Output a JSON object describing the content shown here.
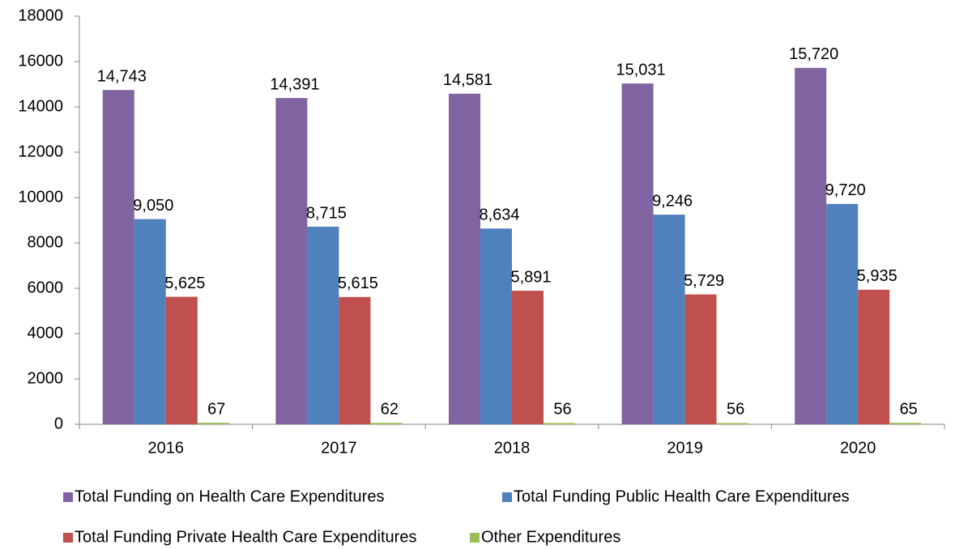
{
  "chart_data": {
    "type": "bar",
    "categories": [
      "2016",
      "2017",
      "2018",
      "2019",
      "2020"
    ],
    "series": [
      {
        "name": "Total Funding on Health Care Expenditures",
        "color": "#8064a2",
        "values": [
          14743,
          14391,
          14581,
          15031,
          15720
        ],
        "value_labels": [
          "14,743",
          "14,391",
          "14,581",
          "15,031",
          "15,720"
        ]
      },
      {
        "name": "Total Funding Public Health Care Expenditures",
        "color": "#4f81bd",
        "values": [
          9050,
          8715,
          8634,
          9246,
          9720
        ],
        "value_labels": [
          "9,050",
          "8,715",
          "8,634",
          "9,246",
          "9,720"
        ]
      },
      {
        "name": "Total Funding Private Health Care Expenditures",
        "color": "#c0504d",
        "values": [
          5625,
          5615,
          5891,
          5729,
          5935
        ],
        "value_labels": [
          "5,625",
          "5,615",
          "5,891",
          "5,729",
          "5,935"
        ]
      },
      {
        "name": "Other Expenditures",
        "color": "#9bbb59",
        "values": [
          67,
          62,
          56,
          56,
          65
        ]
      }
    ],
    "ylim": [
      0,
      18000
    ],
    "yticks": [
      0,
      2000,
      4000,
      6000,
      8000,
      10000,
      12000,
      14000,
      16000,
      18000
    ],
    "grid": false,
    "legend": "bottom"
  }
}
